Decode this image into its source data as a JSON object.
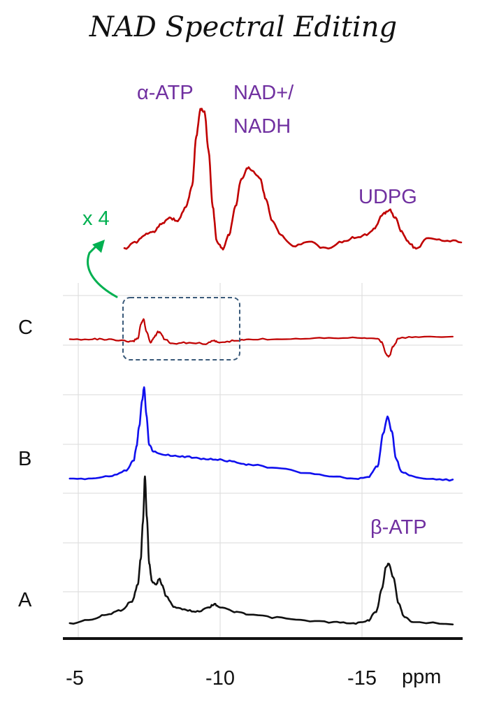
{
  "chart_data": {
    "type": "line",
    "title": "NAD Spectral Editing",
    "xlabel": "ppm",
    "x_range": [
      -4.7,
      -18.2
    ],
    "x_ticks": [
      -5,
      -10,
      -15
    ],
    "x_tick_labels": [
      "-5",
      "-10",
      "-15"
    ],
    "grid": true,
    "colors": {
      "label": "#7030a0",
      "inset_arrow": "#00b050",
      "box": "#3a5a7a",
      "trace_A": "#111111",
      "trace_B": "#1010ee",
      "trace_C": "#c00000"
    },
    "series": [
      {
        "name": "A",
        "color": "#111111",
        "baseline": 0.0,
        "points": [
          [
            -4.7,
            0.02
          ],
          [
            -5.5,
            0.05
          ],
          [
            -6.0,
            0.08
          ],
          [
            -6.5,
            0.11
          ],
          [
            -6.9,
            0.17
          ],
          [
            -7.1,
            0.28
          ],
          [
            -7.2,
            0.45
          ],
          [
            -7.28,
            0.7
          ],
          [
            -7.35,
            1.0
          ],
          [
            -7.42,
            0.72
          ],
          [
            -7.5,
            0.42
          ],
          [
            -7.6,
            0.3
          ],
          [
            -7.75,
            0.28
          ],
          [
            -7.85,
            0.32
          ],
          [
            -7.95,
            0.28
          ],
          [
            -8.1,
            0.2
          ],
          [
            -8.4,
            0.13
          ],
          [
            -8.8,
            0.11
          ],
          [
            -9.2,
            0.1
          ],
          [
            -9.6,
            0.13
          ],
          [
            -9.8,
            0.15
          ],
          [
            -10.0,
            0.13
          ],
          [
            -10.5,
            0.1
          ],
          [
            -11.0,
            0.08
          ],
          [
            -12.0,
            0.06
          ],
          [
            -13.0,
            0.04
          ],
          [
            -14.0,
            0.03
          ],
          [
            -14.7,
            0.02
          ],
          [
            -15.2,
            0.04
          ],
          [
            -15.5,
            0.1
          ],
          [
            -15.7,
            0.25
          ],
          [
            -15.85,
            0.4
          ],
          [
            -15.95,
            0.42
          ],
          [
            -16.1,
            0.33
          ],
          [
            -16.3,
            0.15
          ],
          [
            -16.5,
            0.06
          ],
          [
            -16.8,
            0.03
          ],
          [
            -18.2,
            0.02
          ]
        ]
      },
      {
        "name": "B",
        "color": "#1010ee",
        "baseline": 0.0,
        "points": [
          [
            -4.7,
            0.0
          ],
          [
            -5.5,
            0.01
          ],
          [
            -6.2,
            0.04
          ],
          [
            -6.7,
            0.1
          ],
          [
            -6.95,
            0.2
          ],
          [
            -7.05,
            0.35
          ],
          [
            -7.15,
            0.58
          ],
          [
            -7.25,
            0.85
          ],
          [
            -7.32,
            1.0
          ],
          [
            -7.4,
            0.7
          ],
          [
            -7.5,
            0.38
          ],
          [
            -7.65,
            0.3
          ],
          [
            -8.0,
            0.27
          ],
          [
            -8.5,
            0.25
          ],
          [
            -9.0,
            0.24
          ],
          [
            -9.5,
            0.22
          ],
          [
            -10.0,
            0.21
          ],
          [
            -10.5,
            0.19
          ],
          [
            -11.0,
            0.16
          ],
          [
            -12.0,
            0.12
          ],
          [
            -13.0,
            0.07
          ],
          [
            -14.0,
            0.03
          ],
          [
            -14.7,
            0.0
          ],
          [
            -15.2,
            0.02
          ],
          [
            -15.55,
            0.14
          ],
          [
            -15.75,
            0.5
          ],
          [
            -15.9,
            0.68
          ],
          [
            -16.05,
            0.52
          ],
          [
            -16.2,
            0.22
          ],
          [
            -16.4,
            0.08
          ],
          [
            -16.8,
            0.03
          ],
          [
            -17.5,
            0.0
          ],
          [
            -18.2,
            -0.01
          ]
        ]
      },
      {
        "name": "C",
        "color": "#c00000",
        "baseline": 0.0,
        "points": [
          [
            -4.7,
            0.0
          ],
          [
            -5.5,
            0.02
          ],
          [
            -6.0,
            0.0
          ],
          [
            -6.5,
            -0.05
          ],
          [
            -6.9,
            -0.08
          ],
          [
            -7.1,
            0.05
          ],
          [
            -7.22,
            0.62
          ],
          [
            -7.3,
            0.75
          ],
          [
            -7.4,
            0.3
          ],
          [
            -7.55,
            -0.1
          ],
          [
            -7.7,
            0.12
          ],
          [
            -7.8,
            0.3
          ],
          [
            -7.9,
            0.25
          ],
          [
            -8.05,
            0.0
          ],
          [
            -8.3,
            -0.15
          ],
          [
            -8.8,
            -0.12
          ],
          [
            -9.5,
            -0.15
          ],
          [
            -9.8,
            -0.05
          ],
          [
            -10.0,
            -0.12
          ],
          [
            -10.5,
            -0.05
          ],
          [
            -11.0,
            0.0
          ],
          [
            -12.0,
            0.02
          ],
          [
            -13.0,
            0.05
          ],
          [
            -14.0,
            0.07
          ],
          [
            -15.0,
            0.07
          ],
          [
            -15.5,
            0.06
          ],
          [
            -15.7,
            -0.1
          ],
          [
            -15.85,
            -0.55
          ],
          [
            -15.95,
            -0.65
          ],
          [
            -16.1,
            -0.25
          ],
          [
            -16.3,
            0.05
          ],
          [
            -17.0,
            0.1
          ],
          [
            -18.2,
            0.12
          ]
        ]
      },
      {
        "name": "C (x4 inset)",
        "color": "#c00000",
        "baseline": 0.0,
        "points": [
          [
            -6.5,
            0.0
          ],
          [
            -6.8,
            0.05
          ],
          [
            -7.0,
            0.1
          ],
          [
            -7.2,
            0.12
          ],
          [
            -7.4,
            0.18
          ],
          [
            -7.6,
            0.22
          ],
          [
            -7.8,
            0.2
          ],
          [
            -8.0,
            0.3
          ],
          [
            -8.15,
            0.45
          ],
          [
            -8.25,
            0.8
          ],
          [
            -8.35,
            1.0
          ],
          [
            -8.45,
            0.98
          ],
          [
            -8.55,
            0.7
          ],
          [
            -8.65,
            0.3
          ],
          [
            -8.75,
            0.05
          ],
          [
            -8.9,
            0.0
          ],
          [
            -9.05,
            0.1
          ],
          [
            -9.2,
            0.3
          ],
          [
            -9.35,
            0.5
          ],
          [
            -9.5,
            0.58
          ],
          [
            -9.65,
            0.55
          ],
          [
            -9.8,
            0.5
          ],
          [
            -9.95,
            0.35
          ],
          [
            -10.1,
            0.2
          ],
          [
            -10.3,
            0.1
          ],
          [
            -10.6,
            0.02
          ],
          [
            -11.0,
            0.05
          ],
          [
            -11.4,
            0.0
          ],
          [
            -11.8,
            0.05
          ],
          [
            -12.1,
            0.08
          ],
          [
            -12.4,
            0.1
          ],
          [
            -12.6,
            0.15
          ],
          [
            -12.8,
            0.25
          ],
          [
            -12.95,
            0.28
          ],
          [
            -13.1,
            0.22
          ],
          [
            -13.25,
            0.12
          ],
          [
            -13.4,
            0.05
          ],
          [
            -13.6,
            0.0
          ],
          [
            -13.9,
            0.08
          ],
          [
            -14.3,
            0.06
          ],
          [
            -14.7,
            0.05
          ]
        ]
      }
    ],
    "trace_labels": [
      "A",
      "B",
      "C"
    ],
    "annotations": {
      "alpha_atp": "α-ATP",
      "nad_line1": "NAD+/",
      "nad_line2": "NADH",
      "udpg": "UDPG",
      "beta_atp": "β-ATP",
      "inset_scale": "x 4"
    }
  }
}
